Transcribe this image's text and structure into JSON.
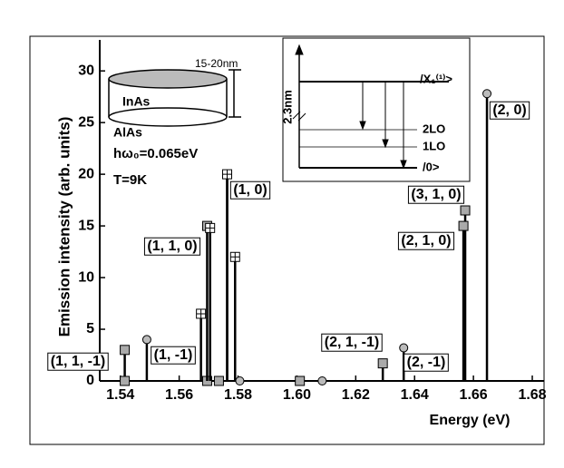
{
  "chart_data": {
    "type": "stem",
    "x": [
      1.5415,
      1.5415,
      1.549,
      1.5695,
      1.5695,
      1.5705,
      1.5674,
      1.5735,
      1.5763,
      1.5763,
      1.579,
      1.5806,
      1.601,
      1.6086,
      1.6292,
      1.6363,
      1.6572,
      1.6566,
      1.6646
    ],
    "values": [
      3,
      0,
      4,
      0,
      15,
      14.8,
      6.5,
      0,
      20,
      20,
      12,
      0,
      0,
      0,
      1.7,
      3.2,
      16.5,
      15,
      27.8
    ],
    "markers": [
      "square",
      "square",
      "circle",
      "square",
      "square",
      "plus-square",
      "plus-square",
      "square",
      "circle",
      "plus-square",
      "plus-square",
      "circle",
      "square",
      "circle",
      "square",
      "circle",
      "square",
      "square",
      "circle"
    ],
    "xlim": [
      1.533,
      1.684
    ],
    "ylim": [
      0,
      33
    ],
    "xticks": [
      1.54,
      1.56,
      1.58,
      {
        "value": 1.6,
        "label": "1.60"
      },
      1.62,
      1.64,
      1.66,
      1.68
    ],
    "yticks": [
      0,
      5,
      10,
      15,
      20,
      25,
      30
    ],
    "xlabel": "Energy (eV)",
    "ylabel": "Emission intensity (arb. units)",
    "peak_labels": [
      "(1, 1, -1)",
      "(1, -1)",
      "(1, 1, 0)",
      "(1, 0)",
      "(2, 1, -1)",
      "(2, -1)",
      "(3, 1, 0)",
      "(2, 1, 0)",
      "(2, 0)"
    ],
    "annotations": [
      "15-20nm",
      "InAs",
      "AlAs",
      "hω₀=0.065eV",
      "T=9K"
    ],
    "inset": {
      "size": "2.3nm",
      "levels": [
        "/X₁⁽¹⁾>",
        "2LO",
        "1LO",
        "/0>"
      ]
    }
  }
}
